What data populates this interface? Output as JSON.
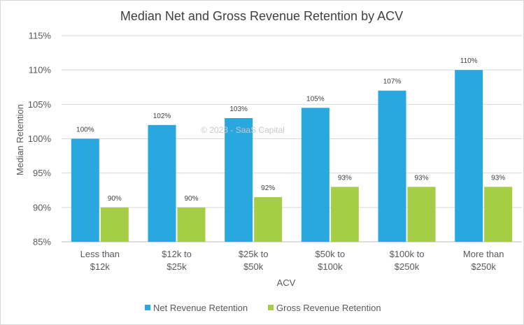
{
  "chart_data": {
    "type": "bar",
    "title": "Median Net and Gross Revenue Retention by ACV",
    "xlabel": "ACV",
    "ylabel": "Median Retention",
    "categories": [
      [
        "Less than",
        "$12k"
      ],
      [
        "$12k to",
        "$25k"
      ],
      [
        "$25k to",
        "$50k"
      ],
      [
        "$50k to",
        "$100k"
      ],
      [
        "$100k to",
        "$250k"
      ],
      [
        "More than",
        "$250k"
      ]
    ],
    "series": [
      {
        "name": "Net Revenue Retention",
        "color": "#29a8e0",
        "values": [
          100,
          102,
          103,
          104.5,
          107,
          110
        ],
        "labels": [
          "100%",
          "102%",
          "103%",
          "105%",
          "107%",
          "110%"
        ]
      },
      {
        "name": "Gross Revenue Retention",
        "color": "#a5cd45",
        "values": [
          90,
          90,
          91.5,
          93,
          93,
          93
        ],
        "labels": [
          "90%",
          "90%",
          "92%",
          "93%",
          "93%",
          "93%"
        ]
      }
    ],
    "ylim": [
      85,
      115
    ],
    "yticks": [
      85,
      90,
      95,
      100,
      105,
      110,
      115
    ],
    "ytick_labels": [
      "85%",
      "90%",
      "95%",
      "100%",
      "105%",
      "110%",
      "115%"
    ],
    "grid": true,
    "legend_position": "bottom",
    "gridline_color": "#d9d9d9",
    "watermark": "© 2023 - SaaS Capital"
  }
}
